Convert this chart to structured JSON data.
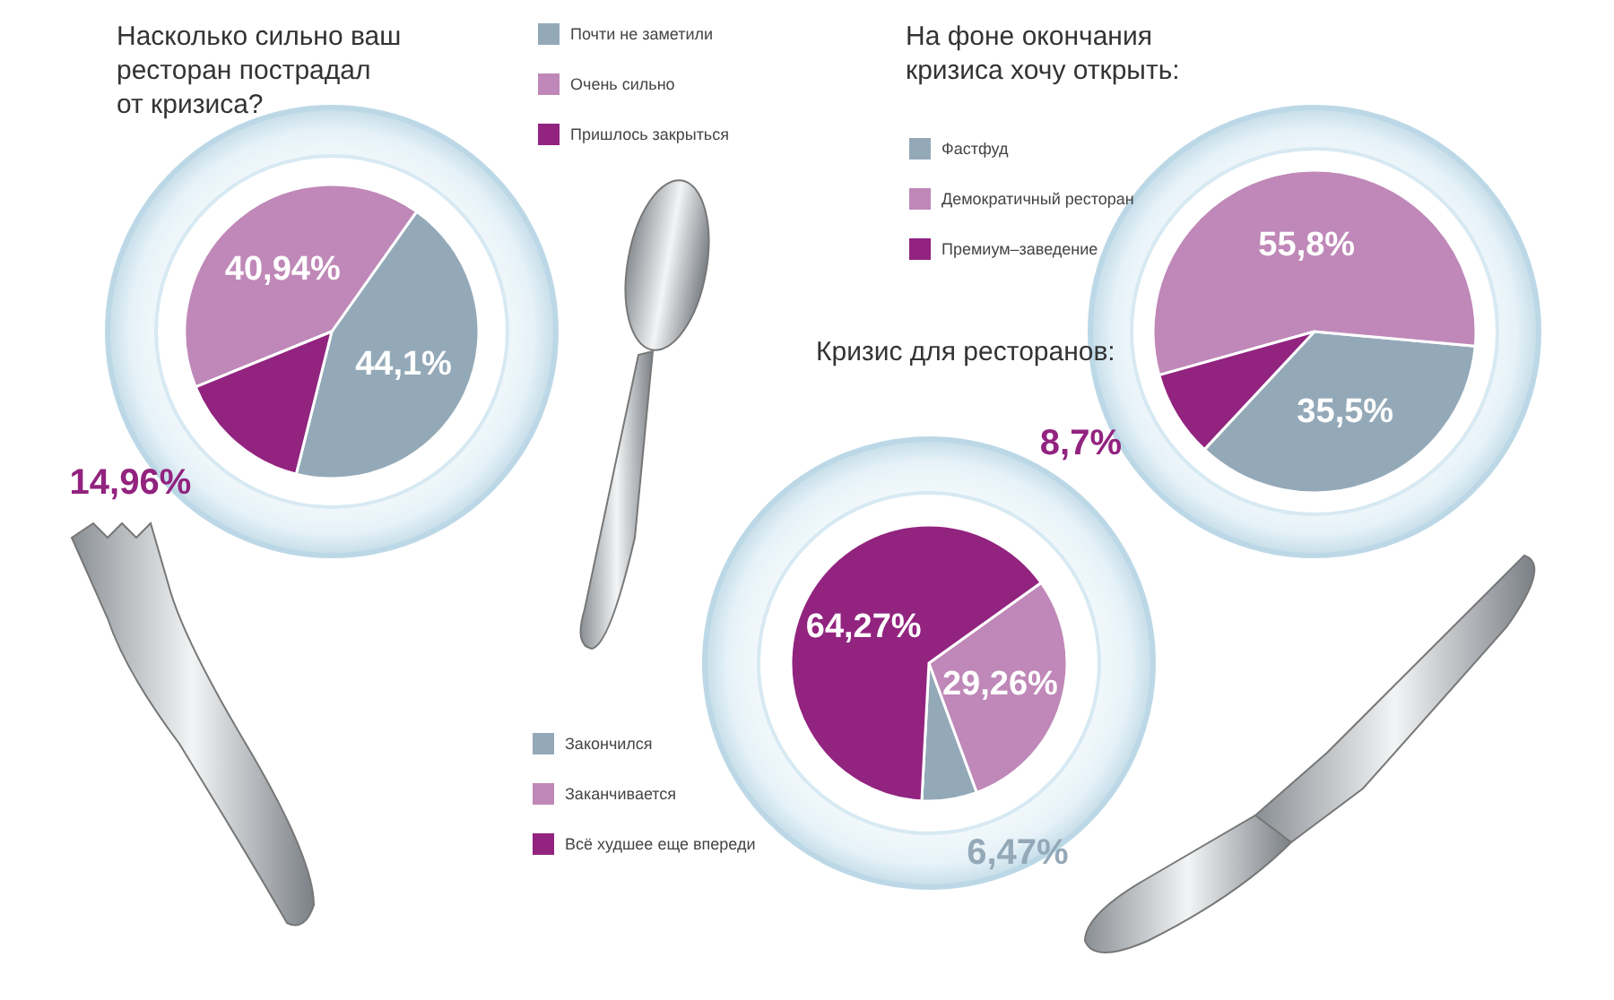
{
  "chart_data": [
    {
      "type": "pie",
      "title": "Насколько сильно ваш ресторан пострадал от кризиса?",
      "categories": [
        "Почти не заметили",
        "Очень сильно",
        "Пришлось закрыться"
      ],
      "values": [
        44.1,
        40.94,
        14.96
      ],
      "value_labels": [
        "44,1%",
        "40,94%",
        "14,96%"
      ],
      "colors": [
        "#94a9b8",
        "#bf88b8",
        "#92237f"
      ],
      "legend": "top right"
    },
    {
      "type": "pie",
      "title": "На фоне окончания кризиса хочу открыть:",
      "categories": [
        "Фастфуд",
        "Демократичный ресторан",
        "Премиум–заведение"
      ],
      "values": [
        35.5,
        55.8,
        8.7
      ],
      "value_labels": [
        "35,5%",
        "55,8%",
        "8,7%"
      ],
      "colors": [
        "#94a9b8",
        "#bf88b8",
        "#92237f"
      ],
      "legend": "top left"
    },
    {
      "type": "pie",
      "title": "Кризис для ресторанов:",
      "categories": [
        "Закончился",
        "Заканчивается",
        "Всё худшее еще впереди"
      ],
      "values": [
        6.47,
        29.26,
        64.27
      ],
      "value_labels": [
        "6,47%",
        "29,26%",
        "64,27%"
      ],
      "colors": [
        "#94a9b8",
        "#bf88b8",
        "#92237f"
      ],
      "legend": "bottom left"
    }
  ]
}
